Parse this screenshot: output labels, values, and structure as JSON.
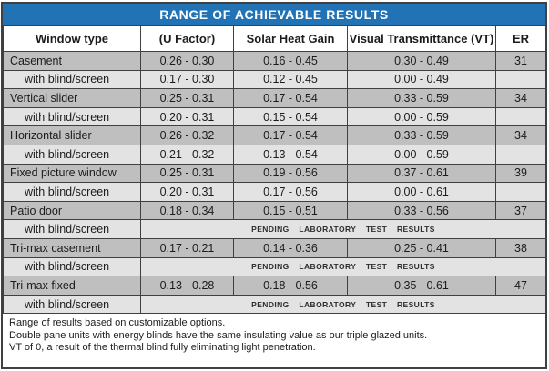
{
  "title": "RANGE OF ACHIEVABLE RESULTS",
  "colors": {
    "title_bg": "#2173b5",
    "title_text": "#ffffff",
    "row_main": "#bfbfbf",
    "row_sub": "#e3e3e3",
    "grid_line": "#404040"
  },
  "table": {
    "columns": [
      "Window type",
      "(U Factor)",
      "Solar Heat Gain",
      "Visual Transmittance (VT)",
      "ER"
    ],
    "rows": [
      {
        "type": "main",
        "window_type": "Casement",
        "u_factor": "0.26 - 0.30",
        "shg": "0.16 - 0.45",
        "vt": "0.30 - 0.49",
        "er": "31"
      },
      {
        "type": "sub",
        "window_type": "with blind/screen",
        "u_factor": "0.17 - 0.30",
        "shg": "0.12 - 0.45",
        "vt": "0.00 - 0.49",
        "er": ""
      },
      {
        "type": "main",
        "window_type": "Vertical slider",
        "u_factor": "0.25 - 0.31",
        "shg": "0.17 - 0.54",
        "vt": "0.33 - 0.59",
        "er": "34"
      },
      {
        "type": "sub",
        "window_type": "with blind/screen",
        "u_factor": "0.20 - 0.31",
        "shg": "0.15 - 0.54",
        "vt": "0.00 - 0.59",
        "er": ""
      },
      {
        "type": "main",
        "window_type": "Horizontal slider",
        "u_factor": "0.26 - 0.32",
        "shg": "0.17 - 0.54",
        "vt": "0.33 - 0.59",
        "er": "34"
      },
      {
        "type": "sub",
        "window_type": "with blind/screen",
        "u_factor": "0.21 - 0.32",
        "shg": "0.13 - 0.54",
        "vt": "0.00 - 0.59",
        "er": ""
      },
      {
        "type": "main",
        "window_type": "Fixed picture window",
        "u_factor": "0.25 - 0.31",
        "shg": "0.19 - 0.56",
        "vt": "0.37 - 0.61",
        "er": "39"
      },
      {
        "type": "sub",
        "window_type": "with blind/screen",
        "u_factor": "0.20 - 0.31",
        "shg": "0.17 - 0.56",
        "vt": "0.00 - 0.61",
        "er": ""
      },
      {
        "type": "main",
        "window_type": "Patio door",
        "u_factor": "0.18 - 0.34",
        "shg": "0.15 - 0.51",
        "vt": "0.33 - 0.56",
        "er": "37"
      },
      {
        "type": "pending",
        "window_type": "with blind/screen",
        "pending": "PENDING LABORATORY TEST RESULTS"
      },
      {
        "type": "main",
        "window_type": "Tri-max casement",
        "u_factor": "0.17 - 0.21",
        "shg": "0.14 - 0.36",
        "vt": "0.25 - 0.41",
        "er": "38"
      },
      {
        "type": "pending",
        "window_type": "with blind/screen",
        "pending": "PENDING LABORATORY TEST RESULTS"
      },
      {
        "type": "main",
        "window_type": "Tri-max fixed",
        "u_factor": "0.13 - 0.28",
        "shg": "0.18 - 0.56",
        "vt": "0.35 - 0.61",
        "er": "47"
      },
      {
        "type": "pending",
        "window_type": "with blind/screen",
        "pending": "PENDING LABORATORY TEST RESULTS"
      }
    ]
  },
  "footnotes": [
    "Range of results based on customizable options.",
    "Double pane units with energy blinds have the same insulating value as our triple glazed units.",
    "VT of 0, a result of the thermal blind fully eliminating light penetration."
  ]
}
